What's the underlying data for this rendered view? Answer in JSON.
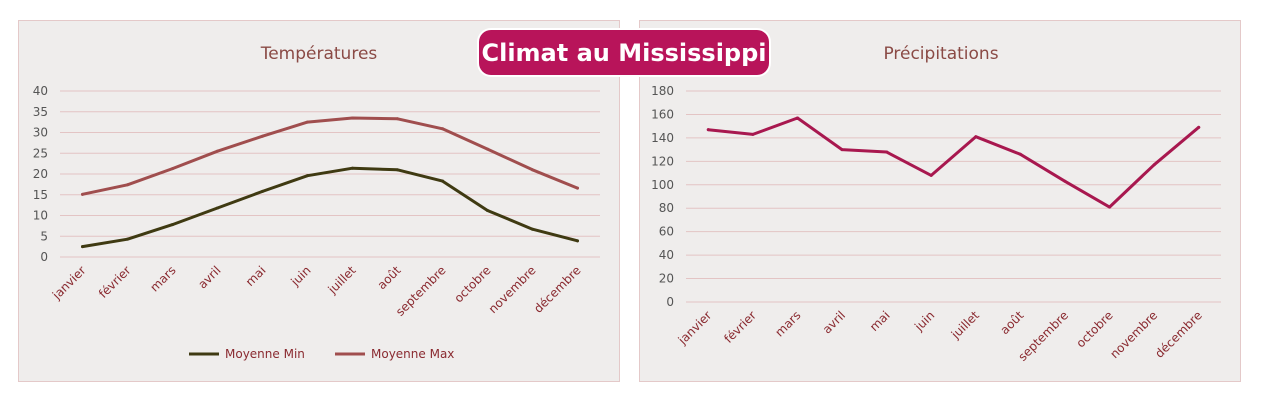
{
  "header": {
    "title": "Climat au Mississippi"
  },
  "chart_data": [
    {
      "type": "line",
      "title": "Températures",
      "categories": [
        "janvier",
        "février",
        "mars",
        "avril",
        "mai",
        "juin",
        "juillet",
        "août",
        "septembre",
        "octobre",
        "novembre",
        "décembre"
      ],
      "series": [
        {
          "name": "Moyenne Min",
          "color": "#3f3a12",
          "values": [
            2.5,
            4.3,
            7.8,
            11.8,
            15.8,
            19.6,
            21.4,
            21.0,
            18.3,
            11.2,
            6.7,
            3.9
          ]
        },
        {
          "name": "Moyenne Max",
          "color": "#a04e4e",
          "values": [
            15.1,
            17.4,
            21.3,
            25.5,
            29.1,
            32.5,
            33.5,
            33.3,
            30.9,
            26.0,
            21.0,
            16.6
          ]
        }
      ],
      "ylim": [
        0,
        40
      ],
      "yticks": [
        0,
        5,
        10,
        15,
        20,
        25,
        30,
        35,
        40
      ],
      "grid": true,
      "legend": "bottom"
    },
    {
      "type": "line",
      "title": "Précipitations",
      "categories": [
        "janvier",
        "février",
        "mars",
        "avril",
        "mai",
        "juin",
        "juillet",
        "août",
        "septembre",
        "octobre",
        "novembre",
        "décembre"
      ],
      "series": [
        {
          "color": "#a8184f",
          "values": [
            147,
            143,
            157,
            130,
            128,
            108,
            141,
            126,
            103,
            81,
            117,
            149
          ]
        }
      ],
      "ylim": [
        0,
        180
      ],
      "yticks": [
        0,
        20,
        40,
        60,
        80,
        100,
        120,
        140,
        160,
        180
      ],
      "grid": true
    }
  ]
}
